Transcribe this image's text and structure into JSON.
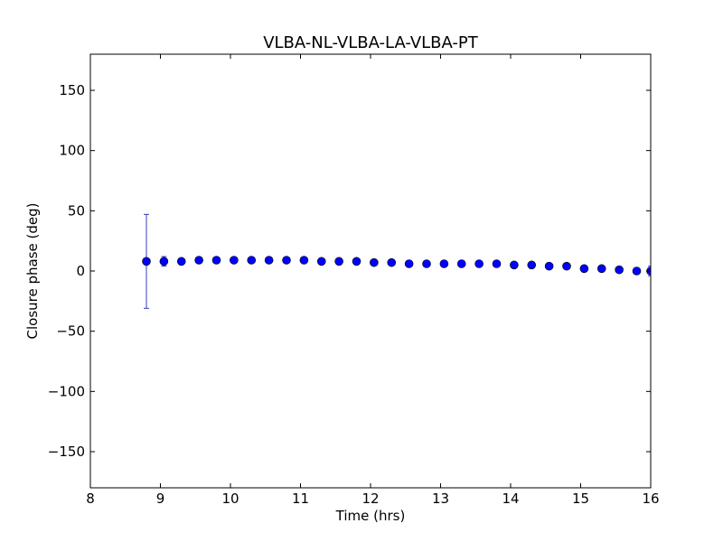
{
  "chart_data": {
    "type": "scatter",
    "title": "VLBA-NL-VLBA-LA-VLBA-PT",
    "xlabel": "Time (hrs)",
    "ylabel": "Closure phase (deg)",
    "xlim": [
      8,
      16
    ],
    "ylim": [
      -180,
      180
    ],
    "xticks": [
      8,
      9,
      10,
      11,
      12,
      13,
      14,
      15,
      16
    ],
    "xtick_labels": [
      "8",
      "9",
      "10",
      "11",
      "12",
      "13",
      "14",
      "15",
      "16"
    ],
    "yticks": [
      -150,
      -100,
      -50,
      0,
      50,
      100,
      150
    ],
    "ytick_labels": [
      "−150",
      "−100",
      "−50",
      "0",
      "50",
      "100",
      "150"
    ],
    "grid": false,
    "colors": {
      "marker": "#0000ff",
      "errorbar": "#3a3abf"
    },
    "series": [
      {
        "x": [
          8.8,
          9.05,
          9.3,
          9.55,
          9.8,
          10.05,
          10.3,
          10.55,
          10.8,
          11.05,
          11.3,
          11.55,
          11.8,
          12.05,
          12.3,
          12.55,
          12.8,
          13.05,
          13.3,
          13.55,
          13.8,
          14.05,
          14.3,
          14.55,
          14.8,
          15.05,
          15.3,
          15.55,
          15.8,
          16.0
        ],
        "y": [
          8,
          8,
          8,
          9,
          9,
          9,
          9,
          9,
          9,
          9,
          8,
          8,
          8,
          7,
          7,
          6,
          6,
          6,
          6,
          6,
          6,
          5,
          5,
          4,
          4,
          2,
          2,
          1,
          0,
          0
        ],
        "yerr": [
          39,
          4,
          2,
          1,
          1,
          1,
          1,
          1,
          1,
          1,
          1,
          1,
          1,
          1,
          1,
          1,
          1,
          1,
          1,
          1,
          1,
          1,
          1,
          1,
          1,
          1,
          1,
          1,
          1,
          4
        ]
      }
    ]
  }
}
